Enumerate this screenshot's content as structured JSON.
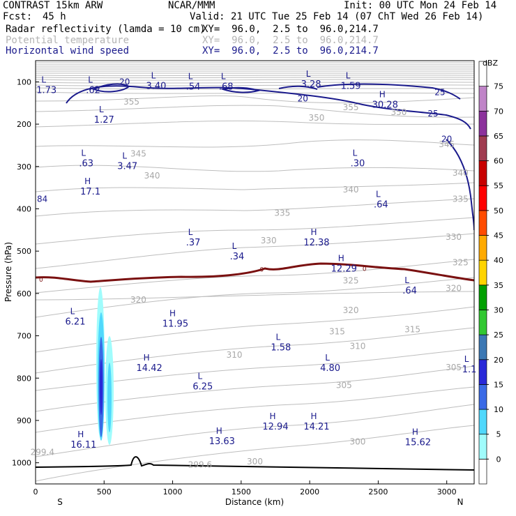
{
  "header": {
    "model": "CONTRAST 15km ARW",
    "center": "NCAR/MMM",
    "init": "Init: 00 UTC Mon 24 Feb 14",
    "fcst_label": "Fcst:",
    "fcst_value": "45 h",
    "valid": "Valid: 21 UTC Tue 25 Feb 14 (07 ChT Wed 26 Feb 14)",
    "fields": [
      {
        "name": "Radar reflectivity (lamda = 10 cm)",
        "xy": "XY=  96.0,  2.5 to  96.0,214.7"
      },
      {
        "name": "Potential temperature",
        "xy": "XY=  96.0,  2.5 to  96.0,214.7"
      },
      {
        "name": "Horizontal wind speed",
        "xy": "XY=  96.0,  2.5 to  96.0,214.7"
      }
    ]
  },
  "chart_data": {
    "type": "cross-section",
    "xlabel": "Distance (km)",
    "ylabel": "Pressure (hPa)",
    "xlim": [
      0,
      3200
    ],
    "ylim": [
      1050,
      50
    ],
    "x_ticks": [
      0,
      500,
      1000,
      1500,
      2000,
      2500,
      3000
    ],
    "y_ticks": [
      100,
      200,
      300,
      400,
      500,
      600,
      700,
      800,
      900,
      1000
    ],
    "left_end": "S",
    "right_end": "N",
    "colorbar": {
      "unit": "dBZ",
      "levels": [
        0,
        5,
        10,
        15,
        20,
        25,
        30,
        35,
        40,
        45,
        50,
        55,
        60,
        65,
        70,
        75
      ],
      "colors": [
        "#ffffff",
        "#a0fcfc",
        "#50d8fc",
        "#3a6ae6",
        "#2828d8",
        "#3c78b4",
        "#32c832",
        "#00a000",
        "#ffd400",
        "#ffaa00",
        "#ff4c00",
        "#ff0000",
        "#c80000",
        "#a03c50",
        "#8c329c",
        "#c084c8",
        "#ffffff"
      ]
    },
    "theta_contours": [
      {
        "label": "355",
        "x": 700,
        "p": 147
      },
      {
        "label": "355",
        "x": 2300,
        "p": 160
      },
      {
        "label": "350",
        "x": 2050,
        "p": 185
      },
      {
        "label": "350",
        "x": 2650,
        "p": 172
      },
      {
        "label": "345",
        "x": 750,
        "p": 270
      },
      {
        "label": "345",
        "x": 3000,
        "p": 248
      },
      {
        "label": "340",
        "x": 850,
        "p": 322
      },
      {
        "label": "340",
        "x": 2300,
        "p": 355
      },
      {
        "label": "340",
        "x": 3100,
        "p": 315
      },
      {
        "label": "335",
        "x": 1800,
        "p": 410
      },
      {
        "label": "335",
        "x": 3100,
        "p": 377
      },
      {
        "label": "330",
        "x": 1700,
        "p": 475
      },
      {
        "label": "330",
        "x": 3050,
        "p": 467
      },
      {
        "label": "325",
        "x": 2300,
        "p": 570
      },
      {
        "label": "325",
        "x": 3100,
        "p": 527
      },
      {
        "label": "320",
        "x": 750,
        "p": 615
      },
      {
        "label": "320",
        "x": 2300,
        "p": 640
      },
      {
        "label": "320",
        "x": 3050,
        "p": 588
      },
      {
        "label": "315",
        "x": 2200,
        "p": 690
      },
      {
        "label": "315",
        "x": 2750,
        "p": 685
      },
      {
        "label": "310",
        "x": 1450,
        "p": 745
      },
      {
        "label": "310",
        "x": 2350,
        "p": 725
      },
      {
        "label": "305",
        "x": 2250,
        "p": 817
      },
      {
        "label": "305",
        "x": 3050,
        "p": 775
      },
      {
        "label": "300",
        "x": 2350,
        "p": 950
      },
      {
        "label": "300",
        "x": 1600,
        "p": 997
      },
      {
        "label": "299.6",
        "x": 1200,
        "p": 1005
      },
      {
        "label": "299.4",
        "x": 50,
        "p": 975
      }
    ],
    "wind_contours": [
      {
        "label": "20",
        "x": 650,
        "p": 100
      },
      {
        "label": "20",
        "x": 1950,
        "p": 140
      },
      {
        "label": "20",
        "x": 3000,
        "p": 235
      },
      {
        "label": "25",
        "x": 2950,
        "p": 125
      },
      {
        "label": "25",
        "x": 2900,
        "p": 175
      },
      {
        "label": "0",
        "x": 40,
        "p": 566
      },
      {
        "label": "0",
        "x": 1650,
        "p": 542
      },
      {
        "label": "0",
        "x": 2400,
        "p": 540
      }
    ],
    "extrema": [
      {
        "type": "L",
        "value": "1.73",
        "x": 80,
        "p": 110
      },
      {
        "type": "L",
        "value": ".62",
        "x": 420,
        "p": 110
      },
      {
        "type": "L",
        "value": "3.40",
        "x": 880,
        "p": 100
      },
      {
        "type": "L",
        "value": ".54",
        "x": 1150,
        "p": 102
      },
      {
        "type": "L",
        "value": ".68",
        "x": 1390,
        "p": 102
      },
      {
        "type": "L",
        "value": "3.28",
        "x": 2010,
        "p": 96
      },
      {
        "type": "L",
        "value": "1.59",
        "x": 2300,
        "p": 100
      },
      {
        "type": "H",
        "value": "30.28",
        "x": 2550,
        "p": 145
      },
      {
        "type": "L",
        "value": "1.27",
        "x": 500,
        "p": 180
      },
      {
        "type": "L",
        "value": ".63",
        "x": 370,
        "p": 283
      },
      {
        "type": "L",
        "value": "3.47",
        "x": 670,
        "p": 290
      },
      {
        "type": "L",
        "value": ".30",
        "x": 2350,
        "p": 283
      },
      {
        "type": "H",
        "value": "17.1",
        "x": 400,
        "p": 350
      },
      {
        "type": "L",
        "value": ".64",
        "x": 2520,
        "p": 380
      },
      {
        "type": "L",
        "value": ".37",
        "x": 1150,
        "p": 470
      },
      {
        "type": "L",
        "value": ".34",
        "x": 1470,
        "p": 503
      },
      {
        "type": "H",
        "value": "12.38",
        "x": 2050,
        "p": 470
      },
      {
        "type": "H",
        "value": "12.29",
        "x": 2250,
        "p": 532
      },
      {
        "type": "L",
        "value": ".64",
        "x": 2730,
        "p": 584
      },
      {
        "type": "L",
        "value": "6.21",
        "x": 290,
        "p": 657
      },
      {
        "type": "H",
        "value": "11.95",
        "x": 1020,
        "p": 662
      },
      {
        "type": "L",
        "value": "1.58",
        "x": 1790,
        "p": 718
      },
      {
        "type": "H",
        "value": "14.42",
        "x": 830,
        "p": 767
      },
      {
        "type": "L",
        "value": "4.80",
        "x": 2150,
        "p": 767
      },
      {
        "type": "L",
        "value": "1.1",
        "x": 3165,
        "p": 770
      },
      {
        "type": "L",
        "value": "6.25",
        "x": 1220,
        "p": 810
      },
      {
        "type": "H",
        "value": "12.94",
        "x": 1750,
        "p": 905
      },
      {
        "type": "H",
        "value": "14.21",
        "x": 2050,
        "p": 905
      },
      {
        "type": "H",
        "value": "16.11",
        "x": 350,
        "p": 948
      },
      {
        "type": "H",
        "value": "13.63",
        "x": 1360,
        "p": 940
      },
      {
        "type": "H",
        "value": "15.62",
        "x": 2790,
        "p": 942
      }
    ],
    "edge_label": {
      "text": "84",
      "x": 10,
      "p": 377
    }
  }
}
